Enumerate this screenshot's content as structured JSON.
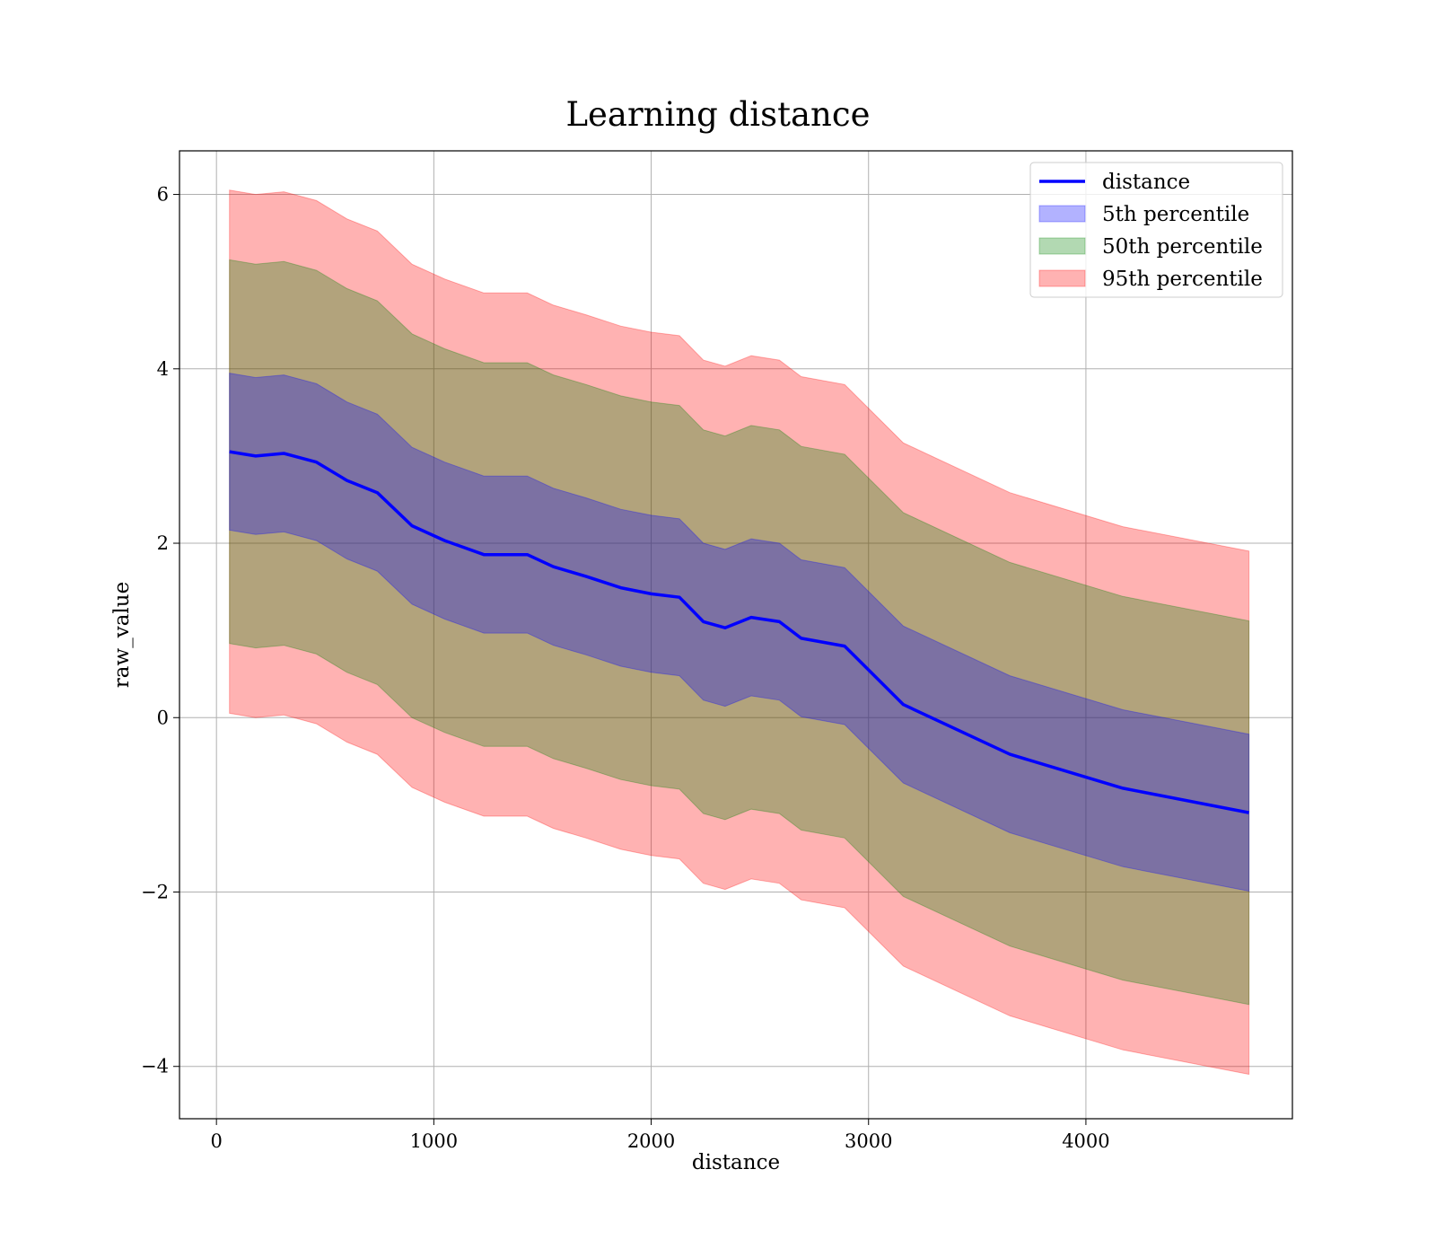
{
  "chart_data": {
    "type": "area",
    "title": "Learning distance",
    "xlabel": "distance",
    "ylabel": "raw_value",
    "xlim": [
      -170,
      4950
    ],
    "ylim": [
      -4.6,
      6.5
    ],
    "xticks": [
      0,
      1000,
      2000,
      3000,
      4000
    ],
    "xtick_labels": [
      "0",
      "1000",
      "2000",
      "3000",
      "4000"
    ],
    "yticks": [
      -4,
      -2,
      0,
      2,
      4,
      6
    ],
    "ytick_labels": [
      "−4",
      "−2",
      "0",
      "2",
      "4",
      "6"
    ],
    "grid": true,
    "legend_position": "top-right",
    "x": [
      60,
      180,
      310,
      460,
      600,
      740,
      900,
      1050,
      1230,
      1430,
      1550,
      1700,
      1860,
      2000,
      2130,
      2240,
      2340,
      2460,
      2590,
      2690,
      2890,
      3160,
      3650,
      4170,
      4750
    ],
    "series": [
      {
        "name": "distance",
        "kind": "line",
        "color": "#0000ff",
        "values": [
          3.05,
          3.0,
          3.03,
          2.93,
          2.72,
          2.58,
          2.2,
          2.03,
          1.87,
          1.87,
          1.73,
          1.62,
          1.49,
          1.42,
          1.38,
          1.1,
          1.03,
          1.15,
          1.1,
          0.91,
          0.82,
          0.15,
          -0.42,
          -0.81,
          -1.09
        ]
      },
      {
        "name": "5th percentile",
        "kind": "band",
        "color": "#0000ff",
        "upper": [
          3.95,
          3.9,
          3.93,
          3.83,
          3.62,
          3.48,
          3.1,
          2.93,
          2.77,
          2.77,
          2.63,
          2.52,
          2.39,
          2.32,
          2.28,
          2.0,
          1.93,
          2.05,
          2.0,
          1.81,
          1.72,
          1.05,
          0.48,
          0.09,
          -0.19
        ],
        "lower": [
          2.15,
          2.1,
          2.13,
          2.03,
          1.82,
          1.68,
          1.3,
          1.13,
          0.97,
          0.97,
          0.83,
          0.72,
          0.59,
          0.52,
          0.48,
          0.2,
          0.13,
          0.25,
          0.2,
          0.01,
          -0.08,
          -0.75,
          -1.32,
          -1.71,
          -1.99
        ]
      },
      {
        "name": "50th percentile",
        "kind": "band",
        "color": "#008000",
        "upper": [
          5.25,
          5.2,
          5.23,
          5.13,
          4.92,
          4.78,
          4.4,
          4.23,
          4.07,
          4.07,
          3.93,
          3.82,
          3.69,
          3.62,
          3.58,
          3.3,
          3.23,
          3.35,
          3.3,
          3.11,
          3.02,
          2.35,
          1.78,
          1.39,
          1.11
        ],
        "lower": [
          0.85,
          0.8,
          0.83,
          0.73,
          0.52,
          0.38,
          0.0,
          -0.17,
          -0.33,
          -0.33,
          -0.47,
          -0.58,
          -0.71,
          -0.78,
          -0.82,
          -1.1,
          -1.17,
          -1.05,
          -1.1,
          -1.29,
          -1.38,
          -2.05,
          -2.62,
          -3.01,
          -3.29
        ]
      },
      {
        "name": "95th percentile",
        "kind": "band",
        "color": "#ff0000",
        "upper": [
          6.05,
          6.0,
          6.03,
          5.93,
          5.72,
          5.58,
          5.2,
          5.03,
          4.87,
          4.87,
          4.73,
          4.62,
          4.49,
          4.42,
          4.38,
          4.1,
          4.03,
          4.15,
          4.1,
          3.91,
          3.82,
          3.15,
          2.58,
          2.19,
          1.91
        ],
        "lower": [
          0.05,
          0.0,
          0.03,
          -0.07,
          -0.28,
          -0.42,
          -0.8,
          -0.97,
          -1.13,
          -1.13,
          -1.27,
          -1.38,
          -1.51,
          -1.58,
          -1.62,
          -1.9,
          -1.97,
          -1.85,
          -1.9,
          -2.09,
          -2.18,
          -2.85,
          -3.42,
          -3.81,
          -4.09
        ]
      }
    ],
    "legend": [
      {
        "label": "distance",
        "kind": "line",
        "color": "#0000ff"
      },
      {
        "label": "5th percentile",
        "kind": "patch",
        "color": "#0000ff"
      },
      {
        "label": "50th percentile",
        "kind": "patch",
        "color": "#008000"
      },
      {
        "label": "95th percentile",
        "kind": "patch",
        "color": "#ff0000"
      }
    ]
  }
}
